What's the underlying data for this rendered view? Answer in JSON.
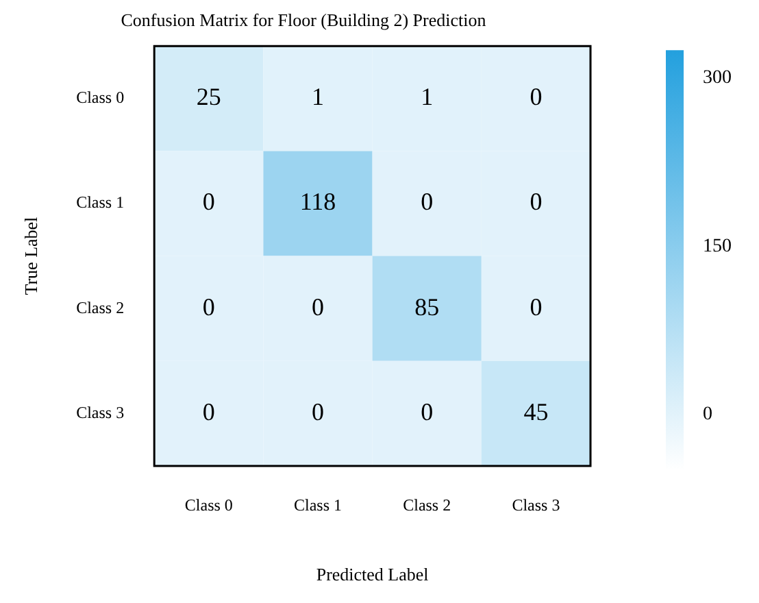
{
  "chart_data": {
    "type": "heatmap",
    "title": "Confusion Matrix for Floor (Building 2) Prediction",
    "xlabel": "Predicted Label",
    "ylabel": "True Label",
    "categories": [
      "Class 0",
      "Class 1",
      "Class 2",
      "Class 3"
    ],
    "y_categories": [
      "Class 0",
      "Class 1",
      "Class 2",
      "Class 3"
    ],
    "cells": [
      [
        25,
        1,
        1,
        0
      ],
      [
        0,
        118,
        0,
        0
      ],
      [
        0,
        0,
        85,
        0
      ],
      [
        0,
        0,
        0,
        45
      ]
    ],
    "clim": [
      -50,
      325
    ],
    "cticks": [
      0,
      150,
      300
    ],
    "data_labels": true
  }
}
